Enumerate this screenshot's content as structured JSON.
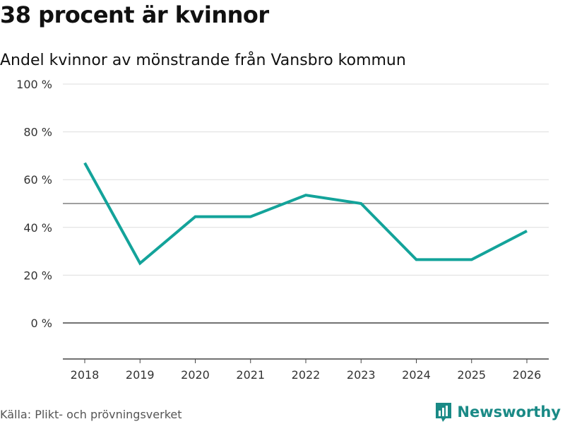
{
  "header": {
    "title": "38 procent är kvinnor",
    "subtitle": "Andel kvinnor av mönstrande från Vansbro kommun"
  },
  "footer": {
    "source": "Källa: Plikt- och prövningsverket",
    "brand": "Newsworthy"
  },
  "colors": {
    "line": "#13a39a",
    "brand": "#1a8a86"
  },
  "chart_data": {
    "type": "line",
    "title": "38 procent är kvinnor",
    "subtitle": "Andel kvinnor av mönstrande från Vansbro kommun",
    "xlabel": "",
    "ylabel": "",
    "categories": [
      "2018",
      "2019",
      "2020",
      "2021",
      "2022",
      "2023",
      "2024",
      "2025",
      "2026"
    ],
    "series": [
      {
        "name": "Andel kvinnor",
        "values": [
          67,
          25,
          44.5,
          44.5,
          53.5,
          50,
          26.5,
          26.5,
          38.5
        ]
      }
    ],
    "y_ticks": [
      0,
      20,
      40,
      60,
      80,
      100
    ],
    "y_tick_labels": [
      "0 %",
      "20 %",
      "40 %",
      "60 %",
      "80 %",
      "100 %"
    ],
    "reference_line": 50,
    "ylim": [
      -15,
      100
    ],
    "grid": true
  }
}
